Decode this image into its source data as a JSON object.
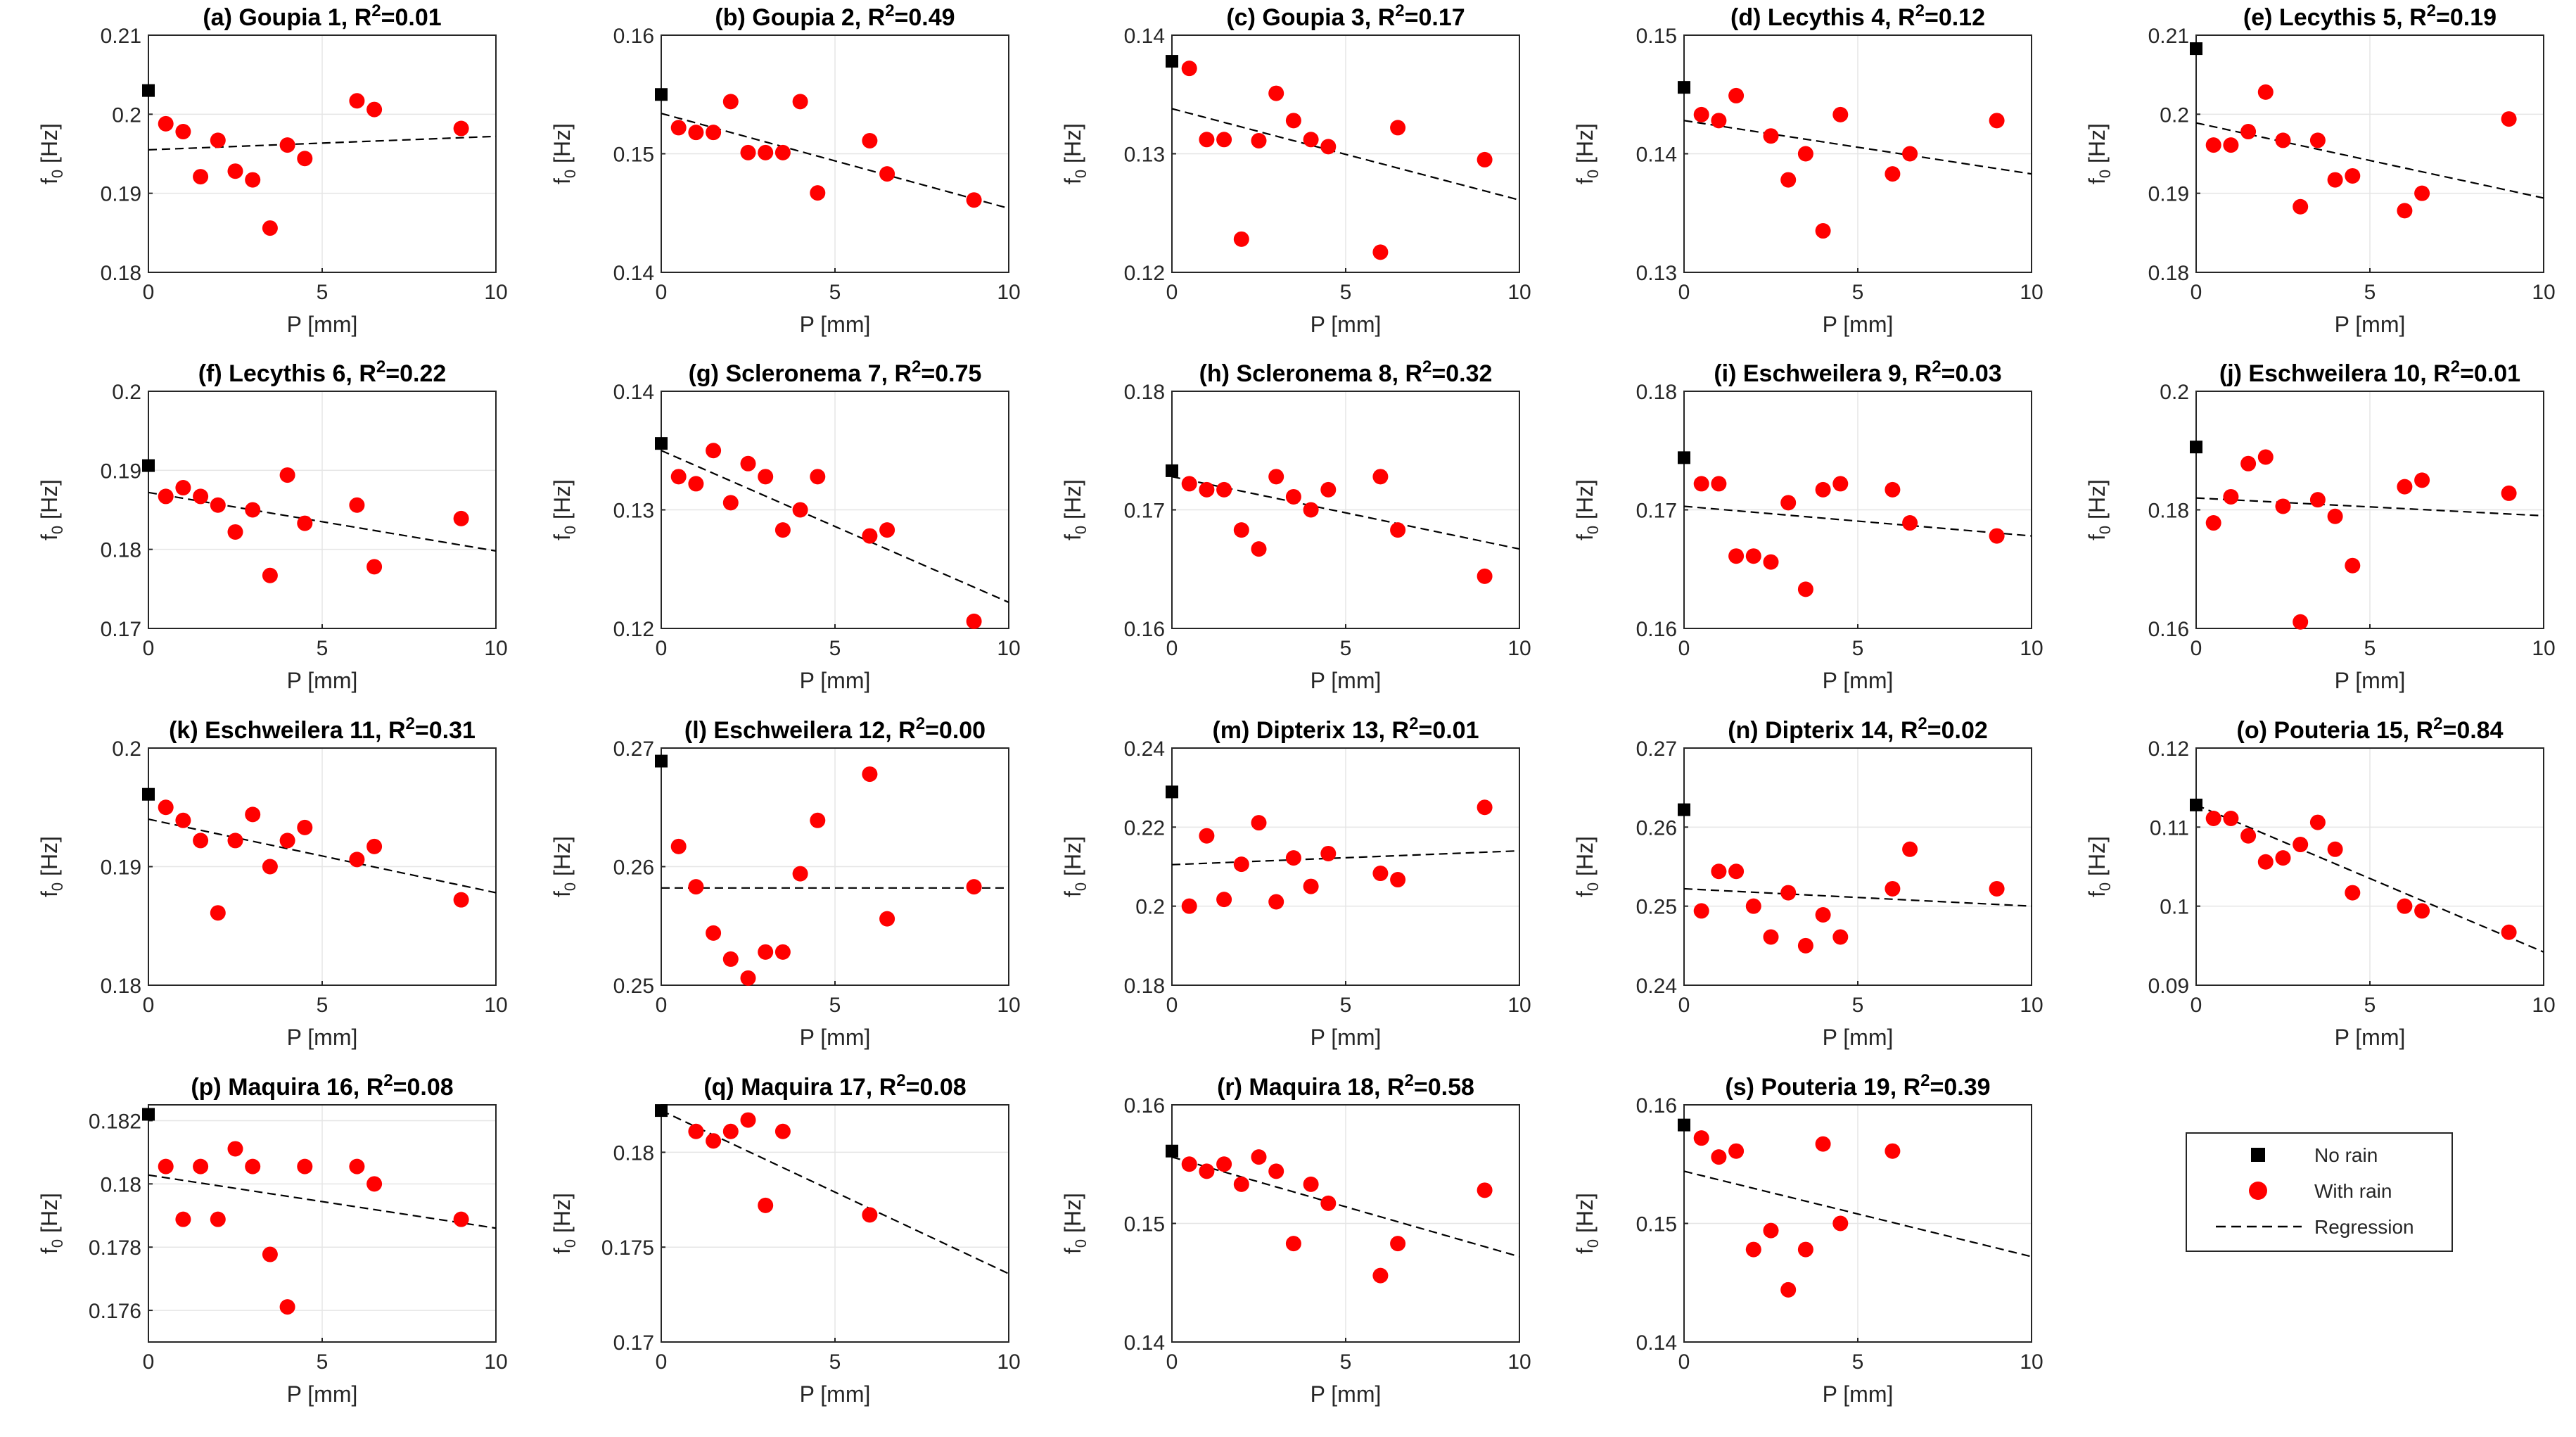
{
  "figure": {
    "x_tick_labels": [
      "0",
      "5",
      "10"
    ],
    "xlabel": "P [mm]",
    "ylabel_main": "f",
    "ylabel_sub": "0",
    "ylabel_unit": "[Hz]",
    "r2_prefix": "R",
    "r2_sup": "2",
    "legend": {
      "no_rain": "No rain",
      "with_rain": "With rain",
      "regression": "Regression"
    },
    "colors": {
      "no_rain": "#000000",
      "with_rain": "#ff0000",
      "regression": "#000000",
      "grid": "#e5e5e5",
      "axes": "#262626"
    }
  },
  "chart_data": [
    {
      "type": "scatter",
      "letter": "a",
      "name": "Goupia 1",
      "r2": "0.01",
      "title_prefix": "(a) Goupia 1, ",
      "xlim": [
        0,
        10
      ],
      "ylim": [
        0.18,
        0.21
      ],
      "yticks": [
        "0.18",
        "0.19",
        "0.2",
        "0.21"
      ],
      "no_rain": {
        "x": 0,
        "y": 0.203
      },
      "with_rain": {
        "x": [
          0.5,
          1,
          1.5,
          2,
          2.5,
          3,
          3.5,
          4,
          4.5,
          6,
          6.5,
          9
        ],
        "y": [
          0.1988,
          0.1978,
          0.1921,
          0.1967,
          0.1928,
          0.1917,
          0.1856,
          0.1961,
          0.1944,
          0.2017,
          0.2006,
          0.1982
        ]
      },
      "regression": {
        "x": [
          0,
          10
        ],
        "y": [
          0.1955,
          0.1972
        ]
      }
    },
    {
      "type": "scatter",
      "letter": "b",
      "name": "Goupia 2",
      "r2": "0.49",
      "title_prefix": "(b) Goupia 2, ",
      "xlim": [
        0,
        10
      ],
      "ylim": [
        0.14,
        0.16
      ],
      "yticks": [
        "0.14",
        "0.15",
        "0.16"
      ],
      "no_rain": {
        "x": 0,
        "y": 0.155
      },
      "with_rain": {
        "x": [
          0.5,
          1,
          1.5,
          2,
          2.5,
          3,
          3.5,
          4,
          4.5,
          6,
          6.5,
          9
        ],
        "y": [
          0.1522,
          0.1518,
          0.1518,
          0.1544,
          0.1501,
          0.1501,
          0.1501,
          0.1544,
          0.1467,
          0.1511,
          0.1483,
          0.1461
        ]
      },
      "regression": {
        "x": [
          0,
          10
        ],
        "y": [
          0.1534,
          0.1454
        ]
      }
    },
    {
      "type": "scatter",
      "letter": "c",
      "name": "Goupia 3",
      "r2": "0.17",
      "title_prefix": "(c) Goupia 3, ",
      "xlim": [
        0,
        10
      ],
      "ylim": [
        0.12,
        0.14
      ],
      "yticks": [
        "0.12",
        "0.13",
        "0.14"
      ],
      "no_rain": {
        "x": 0,
        "y": 0.1378
      },
      "with_rain": {
        "x": [
          0.5,
          1,
          1.5,
          2,
          2.5,
          3,
          3.5,
          4,
          4.5,
          6,
          6.5,
          9
        ],
        "y": [
          0.1372,
          0.1312,
          0.1312,
          0.1228,
          0.1311,
          0.1351,
          0.1328,
          0.1312,
          0.1306,
          0.1217,
          0.1322,
          0.1295
        ]
      },
      "regression": {
        "x": [
          0,
          10
        ],
        "y": [
          0.1338,
          0.1261
        ]
      }
    },
    {
      "type": "scatter",
      "letter": "d",
      "name": "Lecythis 4",
      "r2": "0.12",
      "title_prefix": "(d) Lecythis 4, ",
      "xlim": [
        0,
        10
      ],
      "ylim": [
        0.13,
        0.15
      ],
      "yticks": [
        "0.13",
        "0.14",
        "0.15"
      ],
      "no_rain": {
        "x": 0,
        "y": 0.1456
      },
      "with_rain": {
        "x": [
          0.5,
          1,
          1.5,
          2.5,
          3,
          3.5,
          4,
          4.5,
          6,
          6.5,
          9
        ],
        "y": [
          0.1433,
          0.1428,
          0.1449,
          0.1415,
          0.1378,
          0.14,
          0.1335,
          0.1433,
          0.1383,
          0.14,
          0.1428
        ]
      },
      "regression": {
        "x": [
          0,
          10
        ],
        "y": [
          0.1428,
          0.1383
        ]
      }
    },
    {
      "type": "scatter",
      "letter": "e",
      "name": "Lecythis 5",
      "r2": "0.19",
      "title_prefix": "(e) Lecythis 5, ",
      "xlim": [
        0,
        10
      ],
      "ylim": [
        0.18,
        0.21
      ],
      "yticks": [
        "0.18",
        "0.19",
        "0.2",
        "0.21"
      ],
      "no_rain": {
        "x": 0,
        "y": 0.2083
      },
      "with_rain": {
        "x": [
          0.5,
          1,
          1.5,
          2,
          2.5,
          3,
          3.5,
          4,
          4.5,
          6,
          6.5,
          9
        ],
        "y": [
          0.1961,
          0.1961,
          0.1978,
          0.2028,
          0.1967,
          0.1883,
          0.1967,
          0.1917,
          0.1922,
          0.1878,
          0.19,
          0.1994
        ]
      },
      "regression": {
        "x": [
          0,
          10
        ],
        "y": [
          0.1989,
          0.1894
        ]
      }
    },
    {
      "type": "scatter",
      "letter": "f",
      "name": "Lecythis 6",
      "r2": "0.22",
      "title_prefix": "(f) Lecythis 6, ",
      "xlim": [
        0,
        10
      ],
      "ylim": [
        0.17,
        0.2
      ],
      "yticks": [
        "0.17",
        "0.18",
        "0.19",
        "0.2"
      ],
      "no_rain": {
        "x": 0,
        "y": 0.1906
      },
      "with_rain": {
        "x": [
          0.5,
          1,
          1.5,
          2,
          2.5,
          3,
          3.5,
          4,
          4.5,
          6,
          6.5,
          9
        ],
        "y": [
          0.1867,
          0.1878,
          0.1867,
          0.1856,
          0.1822,
          0.185,
          0.1767,
          0.1894,
          0.1833,
          0.1856,
          0.1778,
          0.1839
        ]
      },
      "regression": {
        "x": [
          0,
          10
        ],
        "y": [
          0.1872,
          0.1798
        ]
      }
    },
    {
      "type": "scatter",
      "letter": "g",
      "name": "Scleronema 7",
      "r2": "0.75",
      "title_prefix": "(g) Scleronema 7, ",
      "xlim": [
        0,
        10
      ],
      "ylim": [
        0.12,
        0.14
      ],
      "yticks": [
        "0.12",
        "0.13",
        "0.14"
      ],
      "no_rain": {
        "x": 0,
        "y": 0.1356
      },
      "with_rain": {
        "x": [
          0.5,
          1,
          1.5,
          2,
          2.5,
          3,
          3.5,
          4,
          4.5,
          6,
          6.5,
          9
        ],
        "y": [
          0.1328,
          0.1322,
          0.135,
          0.1306,
          0.1339,
          0.1328,
          0.1283,
          0.13,
          0.1328,
          0.1278,
          0.1283,
          0.1206
        ]
      },
      "regression": {
        "x": [
          0,
          10
        ],
        "y": [
          0.135,
          0.1222
        ]
      }
    },
    {
      "type": "scatter",
      "letter": "h",
      "name": "Scleronema 8",
      "r2": "0.32",
      "title_prefix": "(h) Scleronema 8, ",
      "xlim": [
        0,
        10
      ],
      "ylim": [
        0.16,
        0.18
      ],
      "yticks": [
        "0.16",
        "0.17",
        "0.18"
      ],
      "no_rain": {
        "x": 0,
        "y": 0.1733
      },
      "with_rain": {
        "x": [
          0.5,
          1,
          1.5,
          2,
          2.5,
          3,
          3.5,
          4,
          4.5,
          6,
          6.5,
          9
        ],
        "y": [
          0.1722,
          0.1717,
          0.1717,
          0.1683,
          0.1667,
          0.1728,
          0.1711,
          0.17,
          0.1717,
          0.1728,
          0.1683,
          0.1644
        ]
      },
      "regression": {
        "x": [
          0,
          10
        ],
        "y": [
          0.1728,
          0.1667
        ]
      }
    },
    {
      "type": "scatter",
      "letter": "i",
      "name": "Eschweilera 9",
      "r2": "0.03",
      "title_prefix": "(i) Eschweilera 9, ",
      "xlim": [
        0,
        10
      ],
      "ylim": [
        0.16,
        0.18
      ],
      "yticks": [
        "0.16",
        "0.17",
        "0.18"
      ],
      "no_rain": {
        "x": 0,
        "y": 0.1744
      },
      "with_rain": {
        "x": [
          0.5,
          1,
          1.5,
          2,
          2.5,
          3,
          3.5,
          4,
          4.5,
          6,
          6.5,
          9
        ],
        "y": [
          0.1722,
          0.1722,
          0.1661,
          0.1661,
          0.1656,
          0.1706,
          0.1633,
          0.1717,
          0.1722,
          0.1717,
          0.1689,
          0.1678
        ]
      },
      "regression": {
        "x": [
          0,
          10
        ],
        "y": [
          0.1703,
          0.1678
        ]
      }
    },
    {
      "type": "scatter",
      "letter": "j",
      "name": "Eschweilera 10",
      "r2": "0.01",
      "title_prefix": "(j) Eschweilera 10, ",
      "xlim": [
        0,
        10
      ],
      "ylim": [
        0.16,
        0.2
      ],
      "yticks": [
        "0.16",
        "0.18",
        "0.2"
      ],
      "no_rain": {
        "x": 0,
        "y": 0.1906
      },
      "with_rain": {
        "x": [
          0.5,
          1,
          1.5,
          2,
          2.5,
          3,
          3.5,
          4,
          4.5,
          6,
          6.5,
          9
        ],
        "y": [
          0.1778,
          0.1822,
          0.1878,
          0.1889,
          0.1806,
          0.1611,
          0.1817,
          0.1789,
          0.1706,
          0.1839,
          0.185,
          0.1828
        ]
      },
      "regression": {
        "x": [
          0,
          10
        ],
        "y": [
          0.182,
          0.179
        ]
      }
    },
    {
      "type": "scatter",
      "letter": "k",
      "name": "Eschweilera 11",
      "r2": "0.31",
      "title_prefix": "(k) Eschweilera 11, ",
      "xlim": [
        0,
        10
      ],
      "ylim": [
        0.18,
        0.2
      ],
      "yticks": [
        "0.18",
        "0.19",
        "0.2"
      ],
      "no_rain": {
        "x": 0,
        "y": 0.1961
      },
      "with_rain": {
        "x": [
          0.5,
          1,
          1.5,
          2,
          2.5,
          3,
          3.5,
          4,
          4.5,
          6,
          6.5,
          9
        ],
        "y": [
          0.195,
          0.1939,
          0.1922,
          0.1861,
          0.1922,
          0.1944,
          0.19,
          0.1922,
          0.1933,
          0.1906,
          0.1917,
          0.1872
        ]
      },
      "regression": {
        "x": [
          0,
          10
        ],
        "y": [
          0.194,
          0.1878
        ]
      }
    },
    {
      "type": "scatter",
      "letter": "l",
      "name": "Eschweilera 12",
      "r2": "0.00",
      "title_prefix": "(l) Eschweilera 12, ",
      "xlim": [
        0,
        10
      ],
      "ylim": [
        0.25,
        0.27
      ],
      "yticks": [
        "0.25",
        "0.26",
        "0.27"
      ],
      "no_rain": {
        "x": 0,
        "y": 0.2689
      },
      "with_rain": {
        "x": [
          0.5,
          1,
          1.5,
          2,
          2.5,
          3,
          3.5,
          4,
          4.5,
          6,
          6.5,
          9
        ],
        "y": [
          0.2617,
          0.2583,
          0.2544,
          0.2522,
          0.2506,
          0.2528,
          0.2528,
          0.2594,
          0.2639,
          0.2678,
          0.2556,
          0.2583
        ]
      },
      "regression": {
        "x": [
          0,
          10
        ],
        "y": [
          0.2582,
          0.2582
        ]
      }
    },
    {
      "type": "scatter",
      "letter": "m",
      "name": "Dipterix 13",
      "r2": "0.01",
      "title_prefix": "(m) Dipterix 13, ",
      "xlim": [
        0,
        10
      ],
      "ylim": [
        0.18,
        0.24
      ],
      "yticks": [
        "0.18",
        "0.2",
        "0.22",
        "0.24"
      ],
      "no_rain": {
        "x": 0,
        "y": 0.2289
      },
      "with_rain": {
        "x": [
          0.5,
          1,
          1.5,
          2,
          2.5,
          3,
          3.5,
          4,
          4.5,
          6,
          6.5,
          9
        ],
        "y": [
          0.2,
          0.2178,
          0.2017,
          0.2106,
          0.2211,
          0.2011,
          0.2122,
          0.205,
          0.2133,
          0.2083,
          0.2067,
          0.225
        ]
      },
      "regression": {
        "x": [
          0,
          10
        ],
        "y": [
          0.2105,
          0.214
        ]
      }
    },
    {
      "type": "scatter",
      "letter": "n",
      "name": "Dipterix 14",
      "r2": "0.02",
      "title_prefix": "(n) Dipterix 14, ",
      "xlim": [
        0,
        10
      ],
      "ylim": [
        0.24,
        0.27
      ],
      "yticks": [
        "0.24",
        "0.25",
        "0.26",
        "0.27"
      ],
      "no_rain": {
        "x": 0,
        "y": 0.2622
      },
      "with_rain": {
        "x": [
          0.5,
          1,
          1.5,
          2,
          2.5,
          3,
          3.5,
          4,
          4.5,
          6,
          6.5,
          9
        ],
        "y": [
          0.2494,
          0.2544,
          0.2544,
          0.25,
          0.2461,
          0.2517,
          0.245,
          0.2489,
          0.2461,
          0.2522,
          0.2572,
          0.2522
        ]
      },
      "regression": {
        "x": [
          0,
          10
        ],
        "y": [
          0.2522,
          0.25
        ]
      }
    },
    {
      "type": "scatter",
      "letter": "o",
      "name": "Pouteria 15",
      "r2": "0.84",
      "title_prefix": "(o) Pouteria 15, ",
      "xlim": [
        0,
        10
      ],
      "ylim": [
        0.09,
        0.12
      ],
      "yticks": [
        "0.09",
        "0.1",
        "0.11",
        "0.12"
      ],
      "no_rain": {
        "x": 0,
        "y": 0.1128
      },
      "with_rain": {
        "x": [
          0.5,
          1,
          1.5,
          2,
          2.5,
          3,
          3.5,
          4,
          4.5,
          6,
          6.5,
          9
        ],
        "y": [
          0.1111,
          0.1111,
          0.1089,
          0.1056,
          0.1061,
          0.1078,
          0.1106,
          0.1072,
          0.1017,
          0.1,
          0.0994,
          0.0967
        ]
      },
      "regression": {
        "x": [
          0,
          10
        ],
        "y": [
          0.1128,
          0.0942
        ]
      }
    },
    {
      "type": "scatter",
      "letter": "p",
      "name": "Maquira 16",
      "r2": "0.08",
      "title_prefix": "(p) Maquira 16, ",
      "xlim": [
        0,
        10
      ],
      "ylim": [
        0.175,
        0.1825
      ],
      "yticks": [
        "0.176",
        "0.178",
        "0.18",
        "0.182"
      ],
      "no_rain": {
        "x": 0,
        "y": 0.1822
      },
      "with_rain": {
        "x": [
          0.5,
          1,
          1.5,
          2,
          2.5,
          3,
          3.5,
          4,
          4.5,
          6,
          6.5,
          9
        ],
        "y": [
          0.18055,
          0.17888,
          0.18055,
          0.17888,
          0.18111,
          0.18055,
          0.17777,
          0.17611,
          0.18055,
          0.18055,
          0.18,
          0.17888
        ]
      },
      "regression": {
        "x": [
          0,
          10
        ],
        "y": [
          0.18028,
          0.1786
        ]
      }
    },
    {
      "type": "scatter",
      "letter": "q",
      "name": "Maquira 17",
      "r2": "0.08",
      "title_prefix": "(q) Maquira 17, ",
      "xlim": [
        0,
        10
      ],
      "ylim": [
        0.17,
        0.1825
      ],
      "yticks": [
        "0.17",
        "0.175",
        "0.18"
      ],
      "no_rain": {
        "x": 0,
        "y": 0.1822
      },
      "with_rain": {
        "x": [
          1,
          1.5,
          2,
          2.5,
          3,
          3.5,
          6
        ],
        "y": [
          0.1811,
          0.1806,
          0.1811,
          0.1817,
          0.1772,
          0.1811,
          0.1767
        ]
      },
      "regression": {
        "x": [
          0,
          10
        ],
        "y": [
          0.1822,
          0.1736
        ]
      }
    },
    {
      "type": "scatter",
      "letter": "r",
      "name": "Maquira 18",
      "r2": "0.58",
      "title_prefix": "(r) Maquira 18, ",
      "xlim": [
        0,
        10
      ],
      "ylim": [
        0.14,
        0.16
      ],
      "yticks": [
        "0.14",
        "0.15",
        "0.16"
      ],
      "no_rain": {
        "x": 0,
        "y": 0.1561
      },
      "with_rain": {
        "x": [
          0.5,
          1,
          1.5,
          2,
          2.5,
          3,
          3.5,
          4,
          4.5,
          6,
          6.5,
          9
        ],
        "y": [
          0.155,
          0.1544,
          0.155,
          0.1533,
          0.1556,
          0.1544,
          0.1483,
          0.1533,
          0.1517,
          0.1456,
          0.1483,
          0.1528
        ]
      },
      "regression": {
        "x": [
          0,
          10
        ],
        "y": [
          0.1556,
          0.1472
        ]
      }
    },
    {
      "type": "scatter",
      "letter": "s",
      "name": "Pouteria 19",
      "r2": "0.39",
      "title_prefix": "(s) Pouteria 19, ",
      "xlim": [
        0,
        10
      ],
      "ylim": [
        0.14,
        0.16
      ],
      "yticks": [
        "0.14",
        "0.15",
        "0.16"
      ],
      "no_rain": {
        "x": 0,
        "y": 0.1583
      },
      "with_rain": {
        "x": [
          0.5,
          1,
          1.5,
          2,
          2.5,
          3,
          3.5,
          4,
          4.5,
          6
        ],
        "y": [
          0.1572,
          0.1556,
          0.1561,
          0.1478,
          0.1494,
          0.1444,
          0.1478,
          0.1567,
          0.15,
          0.1561
        ]
      },
      "regression": {
        "x": [
          0,
          10
        ],
        "y": [
          0.1544,
          0.1472
        ]
      }
    }
  ]
}
